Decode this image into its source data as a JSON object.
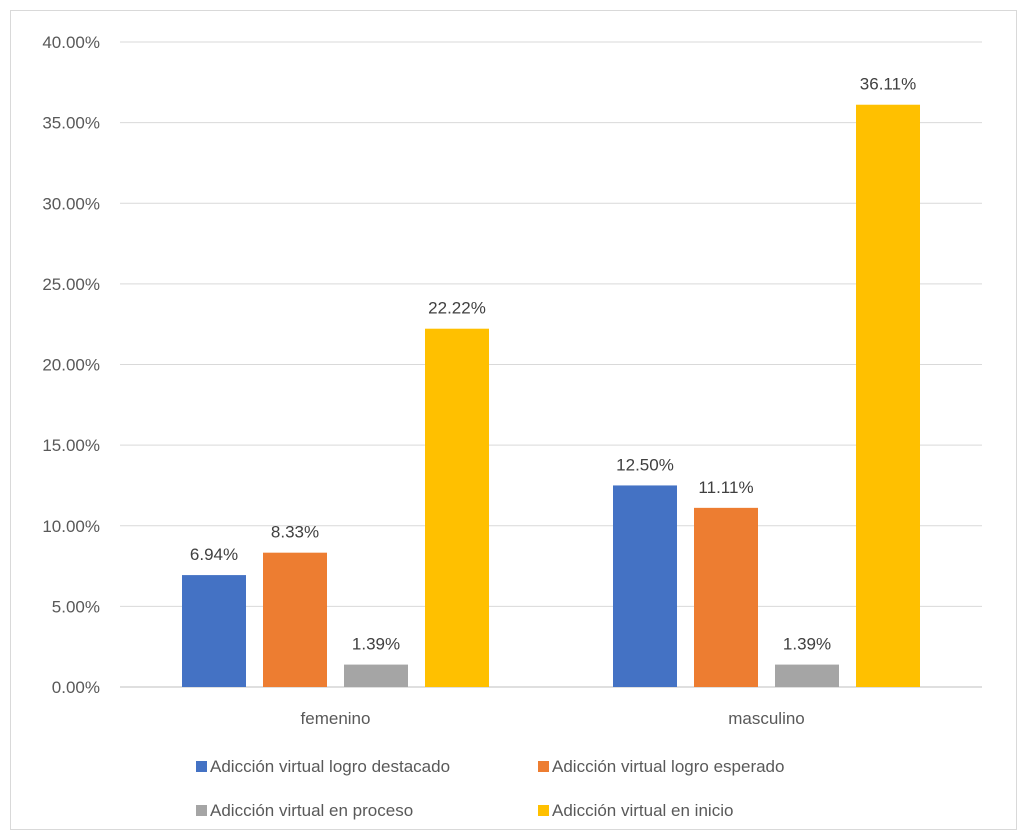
{
  "chart_data": {
    "type": "bar",
    "categories": [
      "femenino",
      "masculino"
    ],
    "series": [
      {
        "name": "Adicción virtual logro destacado",
        "values": [
          6.94,
          12.5
        ],
        "labels": [
          "6.94%",
          "12.50%"
        ],
        "color": "#4472c4"
      },
      {
        "name": "Adicción virtual logro esperado",
        "values": [
          8.33,
          11.11
        ],
        "labels": [
          "8.33%",
          "11.11%"
        ],
        "color": "#ed7d31"
      },
      {
        "name": "Adicción virtual en proceso",
        "values": [
          1.39,
          1.39
        ],
        "labels": [
          "1.39%",
          "1.39%"
        ],
        "color": "#a5a5a5"
      },
      {
        "name": "Adicción virtual en inicio",
        "values": [
          22.22,
          36.11
        ],
        "labels": [
          "22.22%",
          "36.11%"
        ],
        "color": "#ffc000"
      }
    ],
    "ylim": [
      0,
      40
    ],
    "yticks": [
      "0.00%",
      "5.00%",
      "10.00%",
      "15.00%",
      "20.00%",
      "25.00%",
      "30.00%",
      "35.00%",
      "40.00%"
    ],
    "grid": true,
    "legend_position": "bottom",
    "title": "",
    "xlabel": "",
    "ylabel": ""
  }
}
